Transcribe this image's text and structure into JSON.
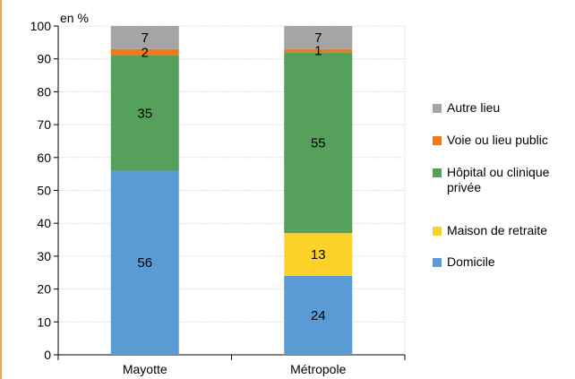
{
  "chart_data": {
    "type": "bar",
    "stacked": true,
    "unit_label": "en %",
    "categories": [
      "Mayotte",
      "Métropole"
    ],
    "ylim": [
      0,
      100
    ],
    "yticks": [
      0,
      10,
      20,
      30,
      40,
      50,
      60,
      70,
      80,
      90,
      100
    ],
    "grid": true,
    "legend_position": "right",
    "series": [
      {
        "name": "Domicile",
        "color": "#5b9bd5",
        "values": [
          56,
          24
        ]
      },
      {
        "name": "Maison de retraite",
        "color": "#fcd12a",
        "values": [
          0,
          13
        ]
      },
      {
        "name": "Hôpital ou clinique privée",
        "color": "#55a05a",
        "values": [
          35,
          55
        ]
      },
      {
        "name": "Voie ou lieu public",
        "color": "#f07a1a",
        "values": [
          2,
          1
        ]
      },
      {
        "name": "Autre lieu",
        "color": "#a5a5a5",
        "values": [
          7,
          7
        ]
      }
    ],
    "legend_order": [
      "Autre lieu",
      "Voie ou lieu public",
      "Hôpital ou clinique privée",
      "Maison de retraite",
      "Domicile"
    ]
  }
}
